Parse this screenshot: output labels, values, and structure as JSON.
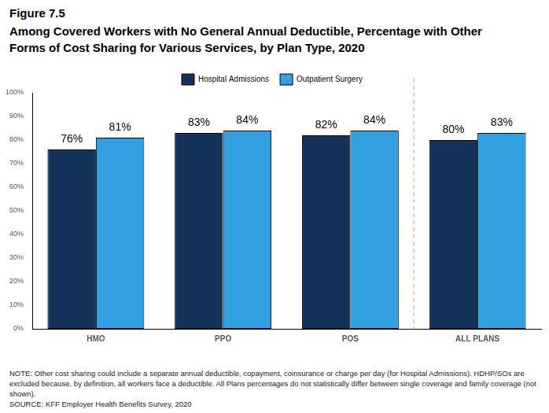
{
  "chart_data": {
    "type": "bar",
    "title": "Figure 7.5",
    "subtitle": "Among Covered Workers with No General Annual Deductible, Percentage with Other Forms of Cost Sharing for Various Services, by Plan Type, 2020",
    "categories": [
      "HMO",
      "PPO",
      "POS",
      "ALL PLANS"
    ],
    "series": [
      {
        "name": "Hospital Admissions",
        "color": "#14335a",
        "values": [
          76,
          83,
          82,
          80
        ],
        "value_labels": [
          "76%",
          "83%",
          "82%",
          "80%"
        ]
      },
      {
        "name": "Outpatient Surgery",
        "color": "#30a0e0",
        "values": [
          81,
          84,
          84,
          83
        ],
        "value_labels": [
          "81%",
          "84%",
          "84%",
          "83%"
        ]
      }
    ],
    "ylim": [
      0,
      100
    ],
    "yticks": [
      {
        "value": 0,
        "label": "0%"
      },
      {
        "value": 10,
        "label": "10%"
      },
      {
        "value": 20,
        "label": "20%"
      },
      {
        "value": 30,
        "label": "30%"
      },
      {
        "value": 40,
        "label": "40%"
      },
      {
        "value": 50,
        "label": "50%"
      },
      {
        "value": 60,
        "label": "60%"
      },
      {
        "value": 70,
        "label": "70%"
      },
      {
        "value": 80,
        "label": "80%"
      },
      {
        "value": 90,
        "label": "90%"
      },
      {
        "value": 100,
        "label": "100%"
      }
    ],
    "grid": false,
    "legend": "top",
    "data_labels": true,
    "note": "NOTE: Other cost sharing could include a separate annual deductible, copayment, coinsurance or charge per day (for Hospital Admissions). HDHP/SOs are excluded because, by definition, all workers face a deductible. All Plans percentages do not statistically differ between single coverage and family coverage (not shown).",
    "source": "SOURCE: KFF Employer Health Benefits Survey, 2020"
  }
}
